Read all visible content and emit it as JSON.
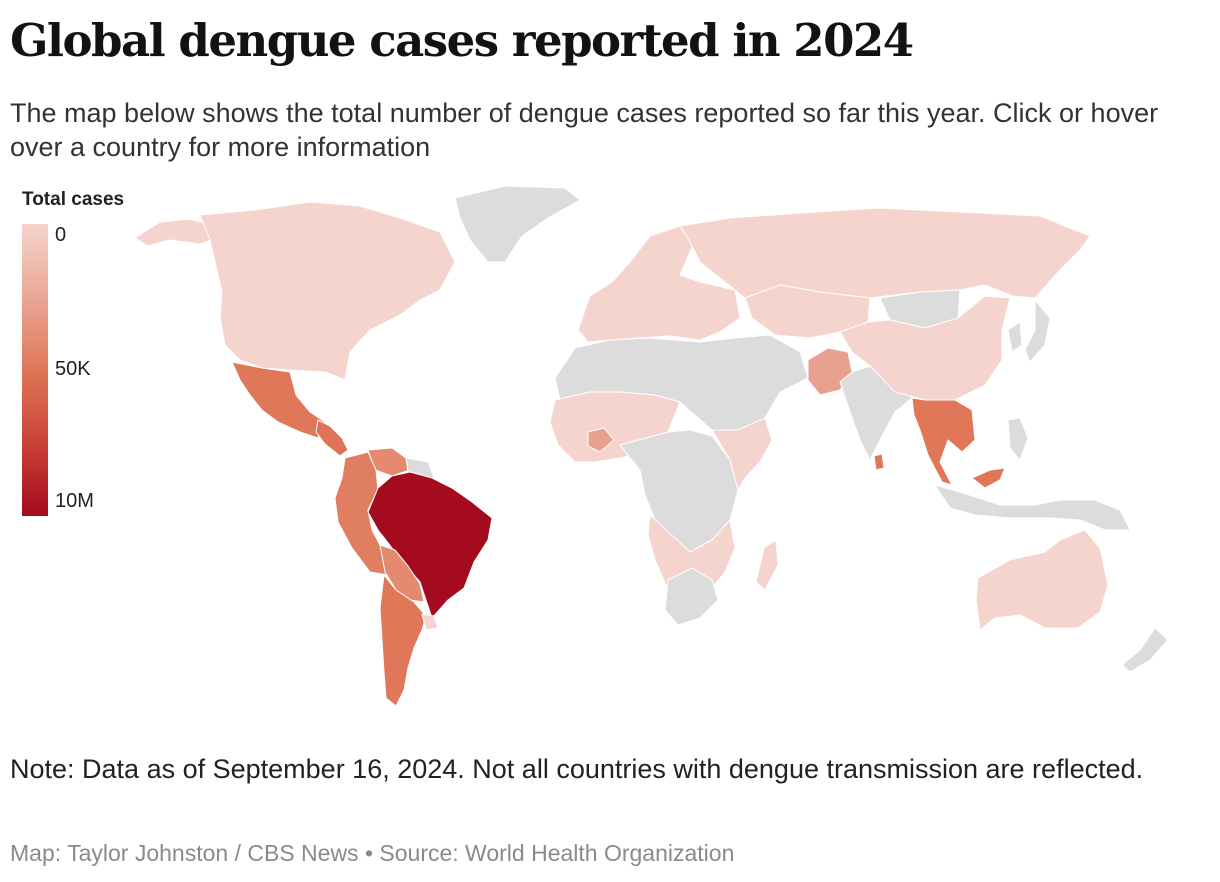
{
  "header": {
    "title": "Global dengue cases reported in 2024",
    "subtitle": "The map below shows the total number of dengue cases reported so far this year. Click or hover over a country for more information"
  },
  "legend": {
    "title": "Total cases",
    "ticks": [
      "0",
      "50K",
      "10M"
    ],
    "colors": {
      "low": "#f5d4cd",
      "mid": "#e07758",
      "high": "#a50b1f",
      "no_data": "#dcdcdc"
    }
  },
  "footer": {
    "note": "Note: Data as of September 16, 2024. Not all countries with dengue transmission are reflected.",
    "credit": "Map: Taylor Johnston / CBS News • Source: World Health Organization"
  },
  "map": {
    "regions": [
      {
        "name": "north-america",
        "color": "#f5d4cd"
      },
      {
        "name": "alaska",
        "color": "#f5d4cd"
      },
      {
        "name": "greenland",
        "color": "#dcdcdc"
      },
      {
        "name": "mexico",
        "color": "#e07758"
      },
      {
        "name": "central-america",
        "color": "#df7357"
      },
      {
        "name": "venezuela",
        "color": "#e58a70"
      },
      {
        "name": "guianas",
        "color": "#dcdcdc"
      },
      {
        "name": "colombia-ecuador-peru",
        "color": "#df7e60"
      },
      {
        "name": "brazil",
        "color": "#a50b1f"
      },
      {
        "name": "bolivia-paraguay",
        "color": "#e48a70"
      },
      {
        "name": "argentina-chile",
        "color": "#e07758"
      },
      {
        "name": "uruguay",
        "color": "#f5d4cd"
      },
      {
        "name": "europe",
        "color": "#f5d4cd"
      },
      {
        "name": "russia",
        "color": "#f5d4cd"
      },
      {
        "name": "north-africa-middle-east",
        "color": "#dcdcdc"
      },
      {
        "name": "west-africa",
        "color": "#f5d4cd"
      },
      {
        "name": "burkina-faso",
        "color": "#e9a18f"
      },
      {
        "name": "central-africa",
        "color": "#dcdcdc"
      },
      {
        "name": "east-africa",
        "color": "#f5d4cd"
      },
      {
        "name": "southern-africa",
        "color": "#f5d4cd"
      },
      {
        "name": "south-africa",
        "color": "#dcdcdc"
      },
      {
        "name": "madagascar",
        "color": "#f5d4cd"
      },
      {
        "name": "kazakhstan",
        "color": "#f5d4cd"
      },
      {
        "name": "pakistan",
        "color": "#e9a18f"
      },
      {
        "name": "india",
        "color": "#dcdcdc"
      },
      {
        "name": "mongolia",
        "color": "#dcdcdc"
      },
      {
        "name": "china",
        "color": "#f5d4cd"
      },
      {
        "name": "japan-korea",
        "color": "#dcdcdc"
      },
      {
        "name": "southeast-asia",
        "color": "#e07758"
      },
      {
        "name": "sri-lanka",
        "color": "#e07758"
      },
      {
        "name": "malaysia",
        "color": "#e07758"
      },
      {
        "name": "indonesia-png",
        "color": "#dcdcdc"
      },
      {
        "name": "philippines",
        "color": "#dcdcdc"
      },
      {
        "name": "australia",
        "color": "#f5d4cd"
      },
      {
        "name": "new-zealand",
        "color": "#dcdcdc"
      }
    ]
  }
}
